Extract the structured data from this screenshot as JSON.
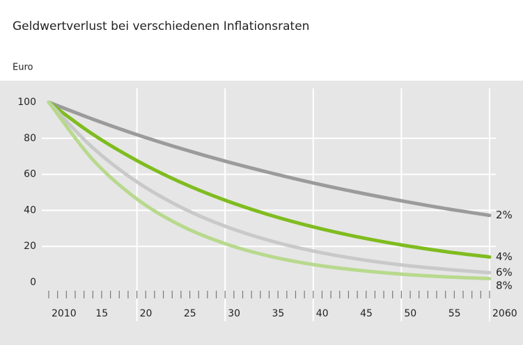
{
  "chart_data": {
    "type": "line",
    "title": "Geldwertverlust bei verschiedenen Inflationsraten",
    "y_label": "Euro",
    "x": [
      2010,
      2015,
      2020,
      2025,
      2030,
      2035,
      2040,
      2045,
      2050,
      2055,
      2060
    ],
    "series": [
      {
        "name": "2%",
        "color": "#9b9b9b",
        "values": [
          100,
          90.6,
          82.0,
          74.3,
          67.3,
          61.0,
          55.2,
          50.0,
          45.3,
          41.0,
          37.2
        ]
      },
      {
        "name": "4%",
        "color": "#7fbc1f",
        "values": [
          100,
          82.2,
          67.6,
          55.5,
          45.6,
          37.5,
          30.8,
          25.3,
          20.8,
          17.1,
          14.1
        ]
      },
      {
        "name": "6%",
        "color": "#c9c9c9",
        "values": [
          100,
          74.7,
          55.8,
          41.7,
          31.2,
          23.3,
          17.4,
          13.0,
          9.7,
          7.3,
          5.4
        ]
      },
      {
        "name": "8%",
        "color": "#b8d98d",
        "values": [
          100,
          68.1,
          46.3,
          31.5,
          21.5,
          14.6,
          9.9,
          6.8,
          4.6,
          3.1,
          2.1
        ]
      }
    ],
    "xlim": [
      2010,
      2060
    ],
    "xticks": [
      2010,
      {
        "value": 2015,
        "label": "15"
      },
      {
        "value": 2020,
        "label": "20"
      },
      {
        "value": 2025,
        "label": "25"
      },
      {
        "value": 2030,
        "label": "30"
      },
      {
        "value": 2035,
        "label": "35"
      },
      {
        "value": 2040,
        "label": "40"
      },
      {
        "value": 2045,
        "label": "45"
      },
      {
        "value": 2050,
        "label": "50"
      },
      {
        "value": 2055,
        "label": "55"
      },
      2060
    ],
    "ylim": [
      0,
      100
    ],
    "yticks": [
      0,
      20,
      40,
      60,
      80,
      100
    ],
    "grid": true
  }
}
